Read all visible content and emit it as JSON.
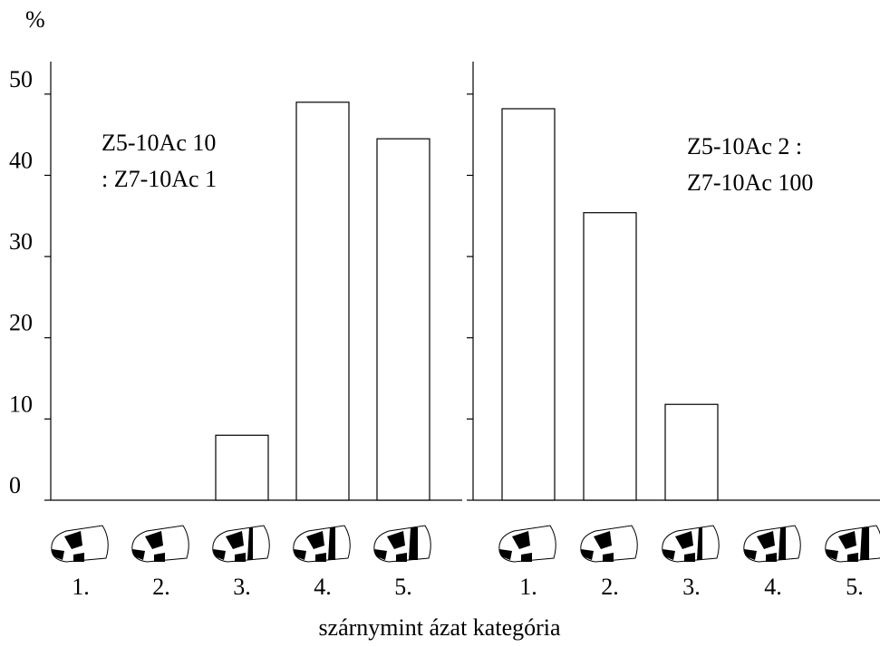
{
  "y_label": "%",
  "x_label": "szárnymint ázat kategória",
  "chart_data": [
    {
      "type": "bar",
      "categories": [
        "1.",
        "2.",
        "3.",
        "4.",
        "5."
      ],
      "values": [
        0,
        0,
        8,
        49,
        44.5
      ],
      "color": "#ffffff",
      "ylim": [
        0,
        54
      ],
      "yticks": [
        0,
        10,
        20,
        30,
        40,
        50
      ],
      "tick_labels": true,
      "annotation": [
        "Z5-10Ac 10",
        ": Z7-10Ac 1"
      ]
    },
    {
      "type": "bar",
      "categories": [
        "1.",
        "2.",
        "3.",
        "4.",
        "5."
      ],
      "values": [
        48.2,
        35.4,
        11.8,
        0,
        0
      ],
      "color": "#ffffff",
      "ylim": [
        0,
        54
      ],
      "yticks": [
        0,
        10,
        20,
        30,
        40,
        50
      ],
      "tick_labels": false,
      "annotation": [
        "Z5-10Ac 2 :",
        "Z7-10Ac 100"
      ]
    }
  ]
}
